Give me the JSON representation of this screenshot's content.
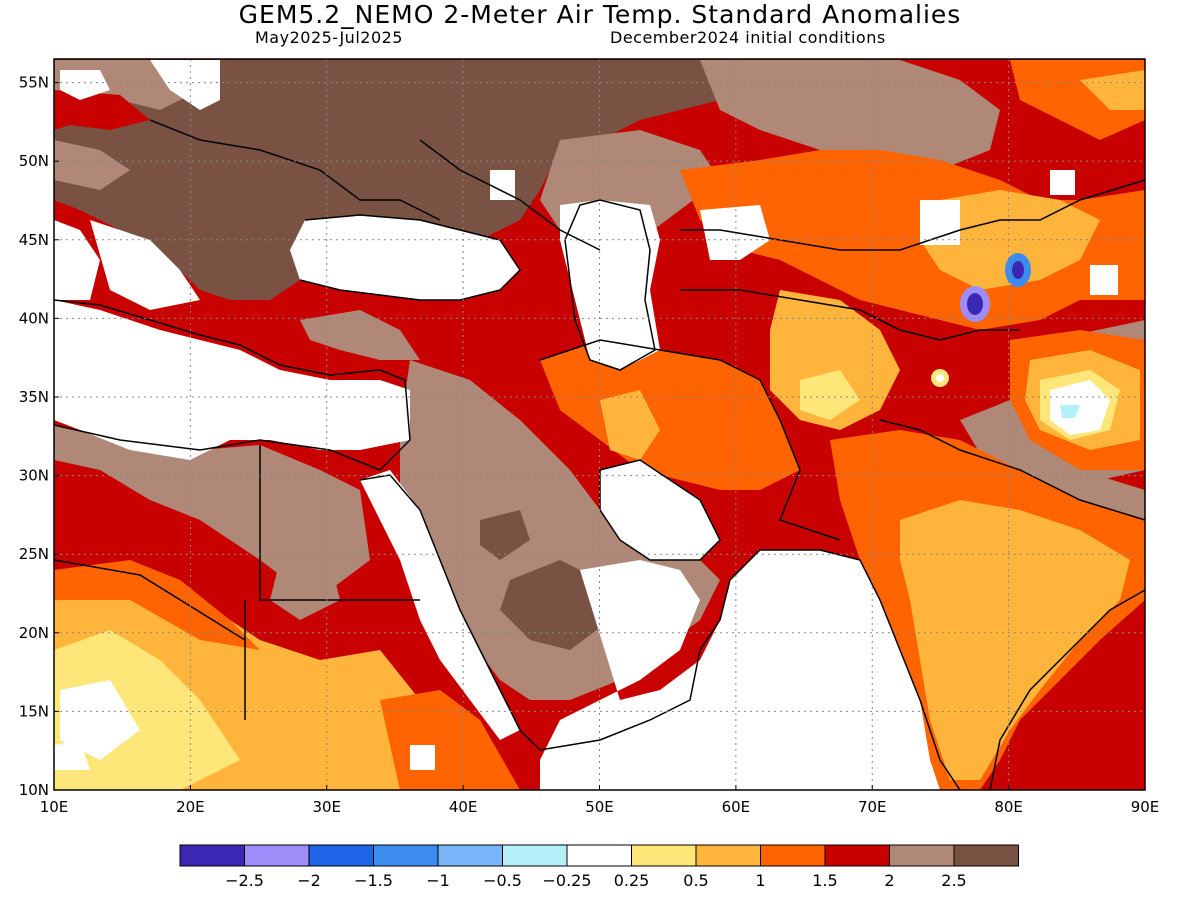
{
  "header": {
    "title": "GEM5.2_NEMO 2-Meter Air Temp. Standard Anomalies",
    "period": "May2025-Jul2025",
    "init": "December2024 initial conditions"
  },
  "axes": {
    "lat_labels": [
      "55N",
      "50N",
      "45N",
      "40N",
      "35N",
      "30N",
      "25N",
      "20N",
      "15N",
      "10N"
    ],
    "lon_labels": [
      "10E",
      "20E",
      "30E",
      "40E",
      "50E",
      "60E",
      "70E",
      "80E",
      "90E"
    ],
    "lat_values": [
      55,
      50,
      45,
      40,
      35,
      30,
      25,
      20,
      15,
      10
    ],
    "lon_values": [
      10,
      20,
      30,
      40,
      50,
      60,
      70,
      80,
      90
    ],
    "lat_range": [
      10,
      56.5
    ],
    "lon_range": [
      10,
      90
    ]
  },
  "colorbar": {
    "colors": [
      "#3a28b4",
      "#9e8cf8",
      "#1e64e6",
      "#3c8cf0",
      "#78b4f8",
      "#b4f0fa",
      "#ffffff",
      "#ffe678",
      "#ffb43c",
      "#ff6400",
      "#c80000",
      "#b08878",
      "#7a5244"
    ],
    "labels": [
      "-2.5",
      "-2",
      "-1.5",
      "-1",
      "-0.5",
      "-0.25",
      "0.25",
      "0.5",
      "1",
      "1.5",
      "2",
      "2.5"
    ]
  },
  "legend_colors": {
    "strong_positive": "#7a5244",
    "positive_2_25": "#b08878",
    "positive_15_2": "#c80000",
    "positive_1_15": "#ff6400",
    "positive_05_1": "#ffb43c",
    "positive_025_05": "#ffe678",
    "neutral": "#ffffff"
  }
}
